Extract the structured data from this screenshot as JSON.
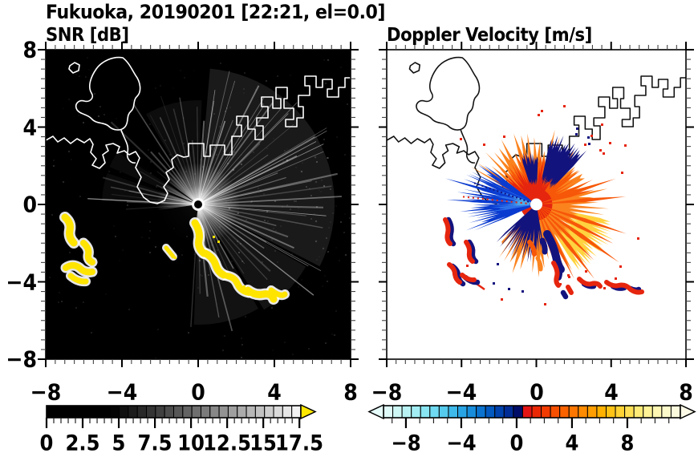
{
  "title": "Fukuoka, 20190201 [22:21, el=0.0]",
  "panels": {
    "snr": {
      "title": "SNR [dB]",
      "x_tick_labels": [
        "−8",
        "−4",
        "0",
        "4",
        "8"
      ],
      "x_tick_values": [
        -8,
        -4,
        0,
        4,
        8
      ],
      "y_tick_labels": [
        "8",
        "4",
        "0",
        "−4",
        "−8"
      ],
      "y_tick_values": [
        8,
        4,
        0,
        -4,
        -8
      ],
      "axis_range": [
        -8,
        8
      ],
      "colorbar": {
        "tick_labels": [
          "0",
          "2.5",
          "5",
          "7.5",
          "10",
          "12.5",
          "15",
          "17.5"
        ],
        "tick_values": [
          0,
          2.5,
          5,
          7.5,
          10,
          12.5,
          15,
          17.5
        ],
        "min": 0,
        "max": 17.6,
        "minor_step": 0.5,
        "overflow_arrow_color": "#FFE800",
        "cell_colors": [
          "#000000",
          "#000000",
          "#000000",
          "#000000",
          "#000000",
          "#000000",
          "#000000",
          "#040404",
          "#101010",
          "#1C1C1C",
          "#282828",
          "#343434",
          "#404040",
          "#4C4C4C",
          "#575757",
          "#636363",
          "#6F6F6F",
          "#7B7B7B",
          "#878787",
          "#939393",
          "#9F9F9F",
          "#ABABAB",
          "#B7B7B7",
          "#C2C2C2",
          "#CECECE",
          "#DADADA",
          "#E6E6E6",
          "#F2F2F2"
        ]
      }
    },
    "doppler": {
      "title": "Doppler Velocity [m/s]",
      "x_tick_labels": [
        "−8",
        "−4",
        "0",
        "4",
        "8"
      ],
      "x_tick_values": [
        -8,
        -4,
        0,
        4,
        8
      ],
      "axis_range": [
        -8,
        8
      ],
      "colorbar": {
        "tick_labels": [
          "−8",
          "−4",
          "0",
          "4",
          "8"
        ],
        "tick_values": [
          -8,
          -4,
          0,
          4,
          8
        ],
        "min": -9.62,
        "max": 11.83,
        "minor_step": 1,
        "underflow_arrow_color": "#E6FDFB",
        "overflow_arrow_color": "#FCFAE6",
        "cell_colors": [
          "#DFFBF9",
          "#CDF7F5",
          "#B9F2F3",
          "#A2EDF3",
          "#89E5F2",
          "#6FDAF1",
          "#55CBEE",
          "#3DB9EA",
          "#28A4E4",
          "#188DDB",
          "#0B73CF",
          "#0359BF",
          "#0042AD",
          "#002C95",
          "#000D68",
          "#E31414",
          "#EB2806",
          "#F23B00",
          "#F74F00",
          "#FB6300",
          "#FD7700",
          "#FE8B00",
          "#FF9E00",
          "#FFB100",
          "#FFC315",
          "#FFD334",
          "#FFE055",
          "#FFEB77",
          "#FFF297",
          "#FEF7B3",
          "#FCF9CB",
          "#FBFADC"
        ]
      }
    }
  },
  "colors": {
    "snr_background": "#000000",
    "doppler_background": "#FFFFFF",
    "coastline_snr": "#FFFFFF",
    "coastline_doppler": "#111111",
    "snr_overflow_yellow": "#FFE400",
    "echo_orange": "#FB831E",
    "echo_deep_orange": "#F75708",
    "echo_red": "#E6250E",
    "echo_yellow": "#FFD23F",
    "echo_blue": "#0A3BD0",
    "echo_light_blue": "#2E72EA",
    "echo_sky_blue": "#4FA8E8",
    "echo_navy": "#13137E",
    "radar_dot_snr": "#000000",
    "radar_dot_doppler": "#FFFFFF"
  },
  "chart_data": [
    {
      "type": "heatmap",
      "title": "SNR [dB]",
      "xlim": [
        -8,
        8
      ],
      "ylim": [
        -8,
        8
      ],
      "xticks": [
        -8,
        -4,
        0,
        4,
        8
      ],
      "yticks": [
        -8,
        -4,
        0,
        4,
        8
      ],
      "x_minor_tick": 0.5,
      "y_minor_tick": 0.5,
      "grid": false,
      "colorbar": {
        "orientation": "horizontal",
        "ticks": [
          0,
          2.5,
          5,
          7.5,
          10,
          12.5,
          15,
          17.5
        ],
        "minor_tick": 0.5,
        "range": [
          0,
          17.5
        ],
        "colormap": "grayscale black to white",
        "overflow": "yellow arrow"
      },
      "features": [
        {
          "label": "radar site",
          "x": 0,
          "y": 0
        },
        {
          "label": "ground clutter rays",
          "desc": "gray radial streaks from radar, brightest toward N-E-SE, dark sector S-SW",
          "r_km": [
            0,
            5
          ]
        },
        {
          "label": "saturated echo arc",
          "desc": "yellow (>17.5 dB) arc with white fringe",
          "from": [
            0.2,
            -1.0
          ],
          "to": [
            4.2,
            -4.4
          ]
        },
        {
          "label": "saturated echo cluster",
          "desc": "yellow blobs with white fringe",
          "x": [
            -7.1,
            -5.3
          ],
          "y": [
            -0.7,
            -3.9
          ]
        },
        {
          "label": "coastline",
          "desc": "white outline of Hakata Bay shore, island and port piers"
        }
      ]
    },
    {
      "type": "heatmap",
      "title": "Doppler Velocity [m/s]",
      "xlim": [
        -8,
        8
      ],
      "ylim": [
        -8,
        8
      ],
      "xticks": [
        -8,
        -4,
        0,
        4,
        8
      ],
      "yticks": [
        -8,
        -4,
        0,
        4,
        8
      ],
      "x_minor_tick": 0.5,
      "y_minor_tick": 0.5,
      "grid": false,
      "colorbar": {
        "orientation": "horizontal",
        "ticks": [
          -8,
          -4,
          0,
          4,
          8
        ],
        "minor_tick": 1,
        "range": [
          -9.6,
          11.8
        ],
        "colormap": "cyan-blue-navy negative, red-orange-yellow-cream positive",
        "underflow": "pale cyan arrow",
        "overflow": "cream arrow"
      },
      "features": [
        {
          "label": "radar site",
          "x": 0,
          "y": 0
        },
        {
          "label": "positive velocity fan",
          "desc": "red/orange/yellow spiky echo N through E to SE of radar, +1 to +10 m/s",
          "r_km": [
            0,
            4.5
          ]
        },
        {
          "label": "negative velocity wedge",
          "desc": "blue wedge W-SW of radar, -3 to -10 m/s",
          "r_km": [
            0,
            4.5
          ]
        },
        {
          "label": "near zero navy patches",
          "desc": "dark navy just NW and S of radar"
        },
        {
          "label": "clutter arcs west",
          "desc": "small red/navy arcs",
          "x": [
            -5.0,
            -3.5
          ],
          "y": [
            -0.8,
            -4.1
          ]
        },
        {
          "label": "clutter arcs southeast",
          "desc": "small red/navy arcs",
          "x": [
            0.9,
            6.1
          ],
          "y": [
            -2.6,
            -4.6
          ]
        },
        {
          "label": "coastline",
          "desc": "black outline of Hakata Bay shore, island and port piers"
        }
      ]
    }
  ]
}
